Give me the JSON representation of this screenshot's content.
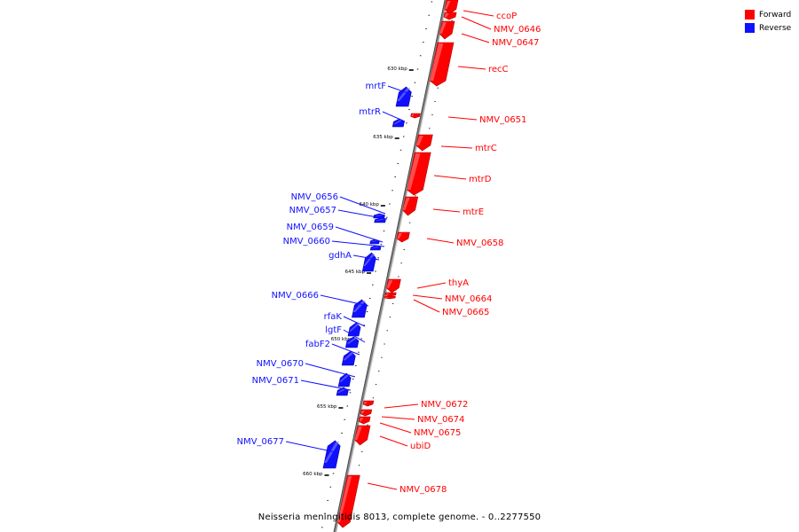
{
  "legend": {
    "forward": {
      "label": "Forward",
      "color": "#ff0000"
    },
    "reverse": {
      "label": "Reverse",
      "color": "#1010ff"
    }
  },
  "caption": "Neisseria meningitidis 8013, complete genome. - 0..2277550",
  "axis": {
    "ticks": [
      "630 kbp",
      "635 kbp",
      "640 kbp",
      "645 kbp",
      "650 kbp",
      "655 kbp",
      "660 kbp"
    ]
  },
  "genes": [
    {
      "name": "ccoP",
      "strand": "forward"
    },
    {
      "name": "NMV_0646",
      "strand": "forward"
    },
    {
      "name": "NMV_0647",
      "strand": "forward"
    },
    {
      "name": "recC",
      "strand": "forward"
    },
    {
      "name": "mrtF",
      "strand": "reverse"
    },
    {
      "name": "mtrR",
      "strand": "reverse"
    },
    {
      "name": "NMV_0651",
      "strand": "forward"
    },
    {
      "name": "mtrC",
      "strand": "forward"
    },
    {
      "name": "mtrD",
      "strand": "forward"
    },
    {
      "name": "NMV_0656",
      "strand": "reverse"
    },
    {
      "name": "NMV_0657",
      "strand": "reverse"
    },
    {
      "name": "mtrE",
      "strand": "forward"
    },
    {
      "name": "NMV_0659",
      "strand": "reverse"
    },
    {
      "name": "NMV_0658",
      "strand": "forward"
    },
    {
      "name": "NMV_0660",
      "strand": "reverse"
    },
    {
      "name": "gdhA",
      "strand": "reverse"
    },
    {
      "name": "thyA",
      "strand": "forward"
    },
    {
      "name": "NMV_0666",
      "strand": "reverse"
    },
    {
      "name": "NMV_0664",
      "strand": "forward"
    },
    {
      "name": "NMV_0665",
      "strand": "forward"
    },
    {
      "name": "rfaK",
      "strand": "reverse"
    },
    {
      "name": "lgtF",
      "strand": "reverse"
    },
    {
      "name": "fabF2",
      "strand": "reverse"
    },
    {
      "name": "NMV_0670",
      "strand": "reverse"
    },
    {
      "name": "NMV_0671",
      "strand": "reverse"
    },
    {
      "name": "NMV_0672",
      "strand": "forward"
    },
    {
      "name": "NMV_0674",
      "strand": "forward"
    },
    {
      "name": "NMV_0675",
      "strand": "forward"
    },
    {
      "name": "ubiD",
      "strand": "forward"
    },
    {
      "name": "NMV_0677",
      "strand": "reverse"
    },
    {
      "name": "NMV_0678",
      "strand": "forward"
    }
  ]
}
